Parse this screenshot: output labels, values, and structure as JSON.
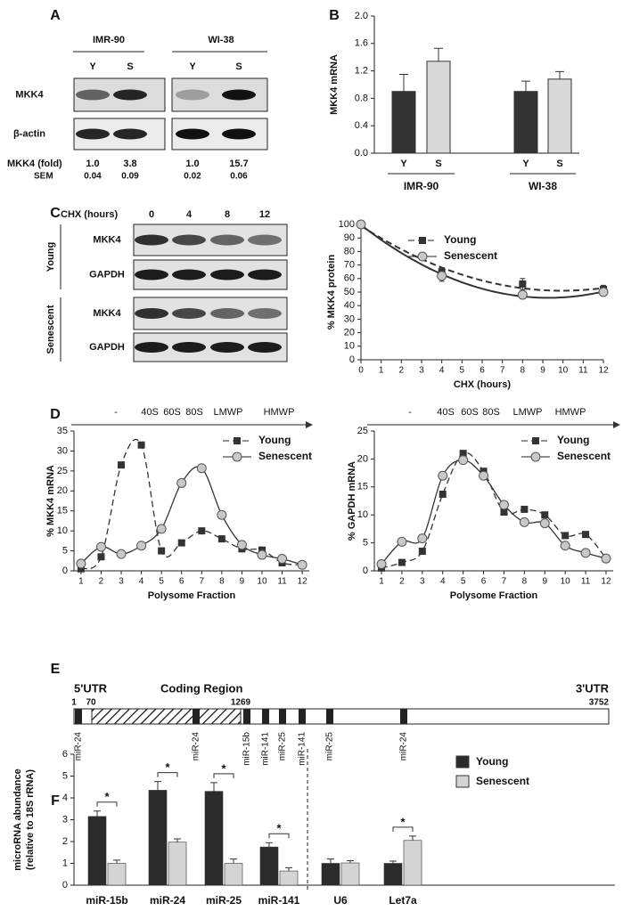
{
  "panel_labels": [
    "A",
    "B",
    "C",
    "D",
    "E",
    "F"
  ],
  "blot_a": {
    "groups": [
      "IMR-90",
      "WI-38"
    ],
    "lanes": [
      "Y",
      "S",
      "Y",
      "S"
    ],
    "rows": [
      "MKK4",
      "β-actin"
    ],
    "fold_label": "MKK4 (fold)",
    "fold": [
      "1.0",
      "3.8",
      "1.0",
      "15.7"
    ],
    "sem_label": "SEM",
    "sem": [
      "0.04",
      "0.09",
      "0.02",
      "0.06"
    ]
  },
  "blot_c": {
    "time_label": "CHX (hours)",
    "times": [
      0,
      4,
      8,
      12
    ],
    "conditions": [
      "Young",
      "Senescent"
    ],
    "rows": [
      "MKK4",
      "GAPDH"
    ]
  },
  "gradient_labels": [
    "-",
    "40S",
    "60S",
    "80S",
    "LMWP",
    "HMWP"
  ],
  "diagram_e": {
    "regions": [
      "5'UTR",
      "Coding Region",
      "3'UTR"
    ],
    "positions": [
      1,
      70,
      1269,
      3752
    ],
    "sites": [
      "miR-24",
      "miR-24",
      "miR-15b",
      "miR-141",
      "miR-25",
      "miR-141",
      "miR-25",
      "miR-24"
    ]
  },
  "chart_data": [
    {
      "type": "bar",
      "y_label": "MKK4 mRNA",
      "categories": [
        "Y",
        "S",
        "Y",
        "S"
      ],
      "groups": [
        "IMR-90",
        "WI-38"
      ],
      "values": [
        0.9,
        1.34,
        0.9,
        1.08
      ],
      "errors": [
        0.25,
        0.19,
        0.15,
        0.11
      ],
      "colors": [
        "#333333",
        "#d9d9d9",
        "#333333",
        "#d9d9d9"
      ],
      "ylim": [
        0,
        2
      ],
      "yticks": [
        {
          "value": 0,
          "label": "0.0"
        },
        0.4,
        0.8,
        1.2,
        1.6,
        {
          "value": 2,
          "label": "2.0"
        }
      ]
    },
    {
      "type": "line",
      "fit": "quadratic",
      "x_label": "CHX (hours)",
      "y_label": "% MKK4 protein",
      "x": [
        0,
        4,
        8,
        12
      ],
      "series": [
        {
          "name": "Young",
          "color": "#333333",
          "line": "dashed",
          "marker": "square",
          "values": [
            100,
            65,
            56,
            52
          ],
          "errors": [
            2,
            3,
            4,
            3
          ]
        },
        {
          "name": "Senescent",
          "color": "#333333",
          "line": "solid",
          "marker": "circle",
          "values": [
            100,
            62,
            48,
            50
          ],
          "errors": [
            2,
            4,
            3,
            3
          ]
        }
      ],
      "xlim": [
        0,
        12
      ],
      "xticks": [
        0,
        1,
        2,
        3,
        4,
        5,
        6,
        7,
        8,
        9,
        10,
        11,
        12
      ],
      "ylim": [
        0,
        100
      ],
      "yticks": [
        0,
        10,
        20,
        30,
        40,
        50,
        60,
        70,
        80,
        90,
        100
      ]
    },
    {
      "type": "line",
      "x_label": "Polysome Fraction",
      "y_label": "% MKK4 mRNA",
      "x": [
        1,
        2,
        3,
        4,
        5,
        6,
        7,
        8,
        9,
        10,
        11,
        12
      ],
      "series": [
        {
          "name": "Young",
          "color": "#333333",
          "line": "dashed",
          "marker": "square",
          "values": [
            0.5,
            3.5,
            26.5,
            31.5,
            5,
            7,
            10,
            8,
            5.5,
            5.2,
            2,
            1.5
          ]
        },
        {
          "name": "Senescent",
          "color": "#333333",
          "line": "solid",
          "marker": "circle",
          "values": [
            1.8,
            6,
            4.2,
            6.3,
            10.5,
            22,
            25.7,
            14,
            6.5,
            4,
            3,
            1.5
          ]
        }
      ],
      "xlim": [
        0.65,
        12.35
      ],
      "xticks": [
        1,
        2,
        3,
        4,
        5,
        6,
        7,
        8,
        9,
        10,
        11,
        12
      ],
      "ylim": [
        0,
        35
      ],
      "yticks": [
        0,
        5,
        10,
        15,
        20,
        25,
        30,
        35
      ]
    },
    {
      "type": "line",
      "x_label": "Polysome Fraction",
      "y_label": "% GAPDH mRNA",
      "x": [
        1,
        2,
        3,
        4,
        5,
        6,
        7,
        8,
        9,
        10,
        11,
        12
      ],
      "series": [
        {
          "name": "Young",
          "color": "#333333",
          "line": "dashed",
          "marker": "square",
          "values": [
            0.5,
            1.5,
            3.5,
            13.7,
            21,
            17.8,
            10.5,
            11,
            10,
            6.3,
            6.5,
            2.2
          ]
        },
        {
          "name": "Senescent",
          "color": "#333333",
          "line": "solid",
          "marker": "circle",
          "values": [
            1.2,
            5.2,
            5.8,
            17,
            19.8,
            17,
            11.8,
            8.7,
            8.5,
            4.5,
            3.2,
            2.2
          ]
        }
      ],
      "xlim": [
        0.65,
        12.35
      ],
      "xticks": [
        1,
        2,
        3,
        4,
        5,
        6,
        7,
        8,
        9,
        10,
        11,
        12
      ],
      "ylim": [
        0,
        25
      ],
      "yticks": [
        0,
        5,
        10,
        15,
        20,
        25
      ]
    },
    {
      "type": "grouped-bar",
      "y_label": [
        "microRNA abundance",
        "(relative to 18S rRNA)"
      ],
      "categories": [
        "miR-15b",
        "miR-24",
        "miR-25",
        "miR-141",
        "U6",
        "Let7a"
      ],
      "series": [
        {
          "name": "Young",
          "color": "#2b2b2b",
          "values": [
            3.15,
            4.35,
            4.3,
            1.75,
            1.0,
            1.0
          ],
          "errors": [
            0.25,
            0.4,
            0.4,
            0.2,
            0.2,
            0.1
          ]
        },
        {
          "name": "Senescent",
          "color": "#d4d4d4",
          "values": [
            1.0,
            1.97,
            1.0,
            0.65,
            1.02,
            2.05
          ],
          "errors": [
            0.15,
            0.15,
            0.2,
            0.15,
            0.1,
            0.2
          ]
        }
      ],
      "significance": [
        "*",
        "*",
        "*",
        "*",
        null,
        "*"
      ],
      "ylim": [
        0,
        6
      ],
      "yticks": [
        0,
        1,
        2,
        3,
        4,
        5,
        6
      ]
    }
  ]
}
